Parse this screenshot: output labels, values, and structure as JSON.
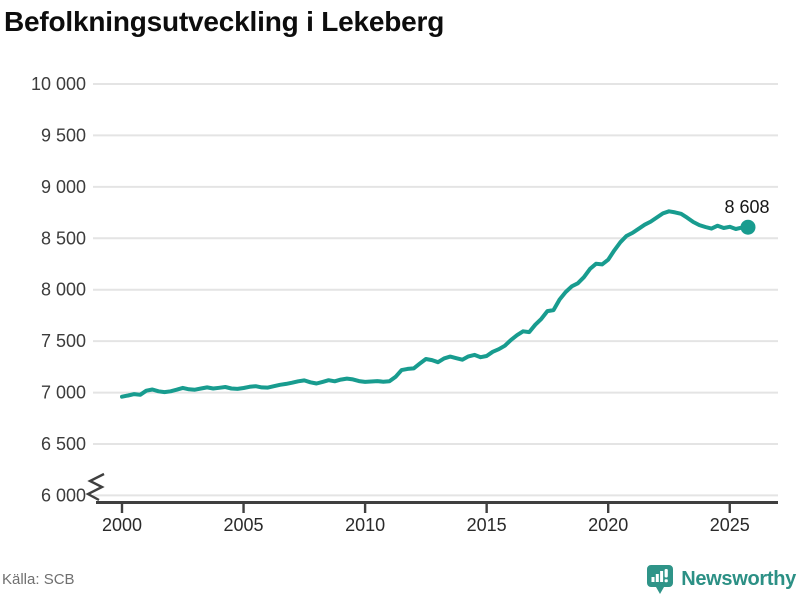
{
  "title": "Befolkningsutveckling i Lekeberg",
  "source": "Källa: SCB",
  "branding": {
    "name": "Newsworthy",
    "icon": "newsworthy-bubble-barchart-icon",
    "color": "#2f9488"
  },
  "colors": {
    "line": "#189c8f",
    "grid": "#e4e4e4",
    "axis": "#3f3f3f",
    "x_tick_label": "#2a2a2a",
    "y_tick_label": "#3c3c3c",
    "end_label": "#161616"
  },
  "chart_data": {
    "type": "line",
    "title": "Befolkningsutveckling i Lekeberg",
    "xlabel": "",
    "ylabel": "",
    "xlim": [
      1999.5,
      2027
    ],
    "ylim": [
      6000,
      10000
    ],
    "grid": "horizontal",
    "axis_break_at_bottom": true,
    "x_ticks": [
      2000,
      2005,
      2010,
      2015,
      2020,
      2025
    ],
    "y_ticks": [
      {
        "label": "10 000",
        "value": 10000
      },
      {
        "label": "9 500",
        "value": 9500
      },
      {
        "label": "9 000",
        "value": 9000
      },
      {
        "label": "8 500",
        "value": 8500
      },
      {
        "label": "8 000",
        "value": 8000
      },
      {
        "label": "7 500",
        "value": 7500
      },
      {
        "label": "7 000",
        "value": 7000
      },
      {
        "label": "6 500",
        "value": 6500
      },
      {
        "label": "6 000",
        "value": 6000
      }
    ],
    "end_label": "8 608",
    "end_value": 8608,
    "series": [
      {
        "name": "Folkmängd",
        "x_start": 2000.0,
        "x_step": 0.25,
        "values": [
          6960,
          6972,
          6985,
          6978,
          7018,
          7030,
          7012,
          7005,
          7012,
          7028,
          7045,
          7032,
          7028,
          7040,
          7050,
          7040,
          7046,
          7054,
          7040,
          7036,
          7044,
          7056,
          7062,
          7050,
          7048,
          7062,
          7076,
          7084,
          7096,
          7110,
          7118,
          7100,
          7088,
          7104,
          7120,
          7110,
          7126,
          7136,
          7128,
          7112,
          7104,
          7108,
          7112,
          7106,
          7110,
          7152,
          7218,
          7230,
          7235,
          7282,
          7326,
          7316,
          7295,
          7332,
          7350,
          7334,
          7320,
          7352,
          7366,
          7344,
          7356,
          7396,
          7422,
          7456,
          7512,
          7558,
          7596,
          7588,
          7660,
          7716,
          7792,
          7802,
          7905,
          7978,
          8032,
          8062,
          8122,
          8202,
          8252,
          8246,
          8292,
          8382,
          8462,
          8522,
          8552,
          8592,
          8632,
          8662,
          8702,
          8742,
          8762,
          8752,
          8738,
          8700,
          8658,
          8628,
          8610,
          8594,
          8622,
          8600,
          8612,
          8590,
          8604,
          8608
        ]
      }
    ]
  }
}
